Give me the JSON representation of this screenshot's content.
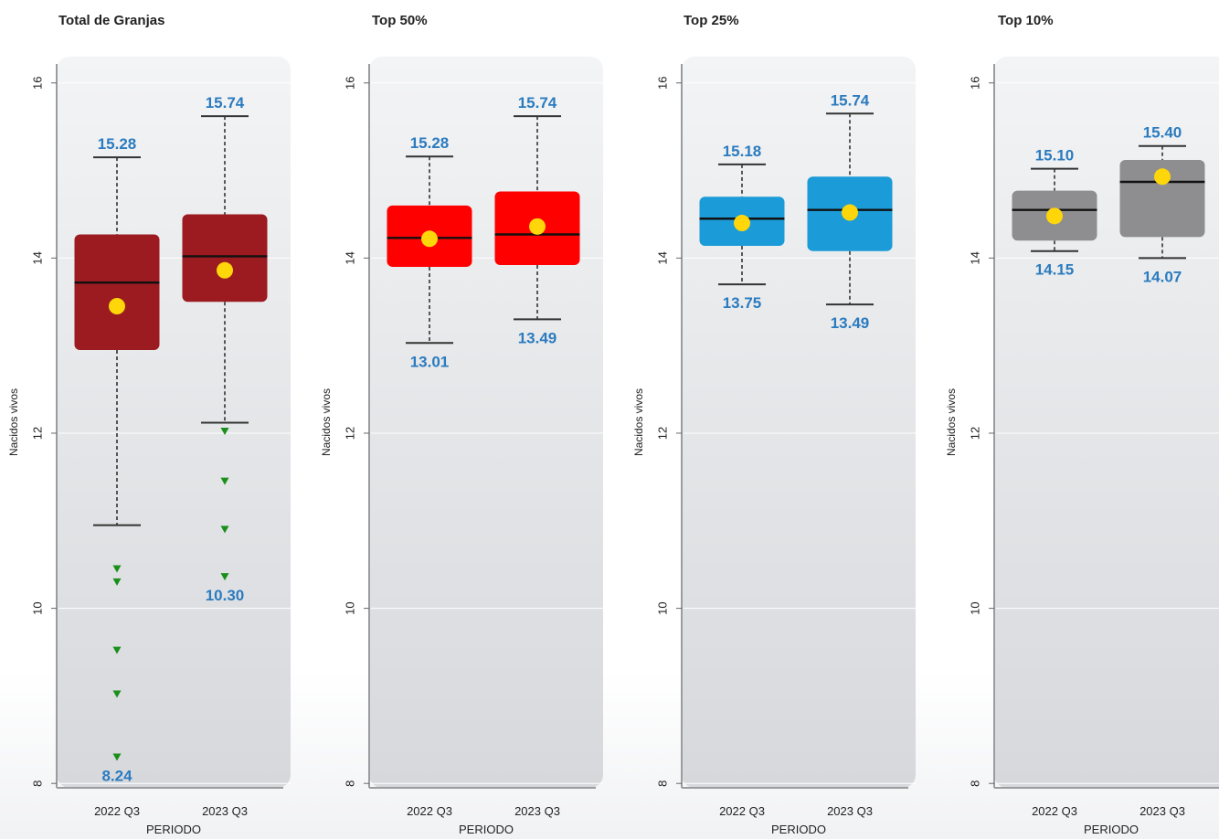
{
  "colors": {
    "mean_marker": "#ffd60a",
    "outlier": "#1a8f1a",
    "value_label": "#2b7bbf",
    "median_line": "#111111",
    "whisker": "#333333"
  },
  "chart_data": [
    {
      "type": "boxplot",
      "title": "Total de Granjas",
      "xlabel": "PERIODO",
      "ylabel": "Nacidos vivos",
      "ylim": [
        7.95,
        16.3
      ],
      "yticks": [
        8,
        10,
        12,
        14,
        16
      ],
      "box_color": "#9b1b20",
      "categories": [
        "2022 Q3",
        "2023 Q3"
      ],
      "boxes": [
        {
          "whisker_low": 10.95,
          "q1": 12.95,
          "median": 13.72,
          "q3": 14.27,
          "whisker_high": 15.15,
          "mean": 13.45,
          "outliers": [
            10.45,
            10.3,
            9.52,
            9.02,
            8.3
          ],
          "label_high": "15.28",
          "label_low": "8.24"
        },
        {
          "whisker_low": 12.12,
          "q1": 13.5,
          "median": 14.02,
          "q3": 14.5,
          "whisker_high": 15.62,
          "mean": 13.86,
          "outliers": [
            12.02,
            11.45,
            10.9,
            10.36
          ],
          "label_high": "15.74",
          "label_low": "10.30"
        }
      ]
    },
    {
      "type": "boxplot",
      "title": "Top 50%",
      "xlabel": "PERIODO",
      "ylabel": "Nacidos vivos",
      "ylim": [
        7.95,
        16.3
      ],
      "yticks": [
        8,
        10,
        12,
        14,
        16
      ],
      "box_color": "#ff0000",
      "categories": [
        "2022 Q3",
        "2023 Q3"
      ],
      "boxes": [
        {
          "whisker_low": 13.03,
          "q1": 13.9,
          "median": 14.23,
          "q3": 14.6,
          "whisker_high": 15.16,
          "mean": 14.22,
          "outliers": [],
          "label_high": "15.28",
          "label_low": "13.01"
        },
        {
          "whisker_low": 13.3,
          "q1": 13.92,
          "median": 14.27,
          "q3": 14.76,
          "whisker_high": 15.62,
          "mean": 14.36,
          "outliers": [],
          "label_high": "15.74",
          "label_low": "13.49"
        }
      ]
    },
    {
      "type": "boxplot",
      "title": "Top 25%",
      "xlabel": "PERIODO",
      "ylabel": "Nacidos vivos",
      "ylim": [
        7.95,
        16.3
      ],
      "yticks": [
        8,
        10,
        12,
        14,
        16
      ],
      "box_color": "#1b9bd8",
      "categories": [
        "2022 Q3",
        "2023 Q3"
      ],
      "boxes": [
        {
          "whisker_low": 13.7,
          "q1": 14.14,
          "median": 14.45,
          "q3": 14.7,
          "whisker_high": 15.07,
          "mean": 14.4,
          "outliers": [],
          "label_high": "15.18",
          "label_low": "13.75"
        },
        {
          "whisker_low": 13.47,
          "q1": 14.08,
          "median": 14.55,
          "q3": 14.93,
          "whisker_high": 15.65,
          "mean": 14.52,
          "outliers": [],
          "label_high": "15.74",
          "label_low": "13.49"
        }
      ]
    },
    {
      "type": "boxplot",
      "title": "Top 10%",
      "xlabel": "PERIODO",
      "ylabel": "Nacidos vivos",
      "ylim": [
        7.95,
        16.3
      ],
      "yticks": [
        8,
        10,
        12,
        14,
        16
      ],
      "box_color": "#8e8e90",
      "categories": [
        "2022 Q3",
        "2023 Q3"
      ],
      "boxes": [
        {
          "whisker_low": 14.08,
          "q1": 14.2,
          "median": 14.55,
          "q3": 14.77,
          "whisker_high": 15.02,
          "mean": 14.48,
          "outliers": [],
          "label_high": "15.10",
          "label_low": "14.15"
        },
        {
          "whisker_low": 14.0,
          "q1": 14.24,
          "median": 14.87,
          "q3": 15.12,
          "whisker_high": 15.28,
          "mean": 14.93,
          "outliers": [],
          "label_high": "15.40",
          "label_low": "14.07"
        }
      ]
    }
  ]
}
